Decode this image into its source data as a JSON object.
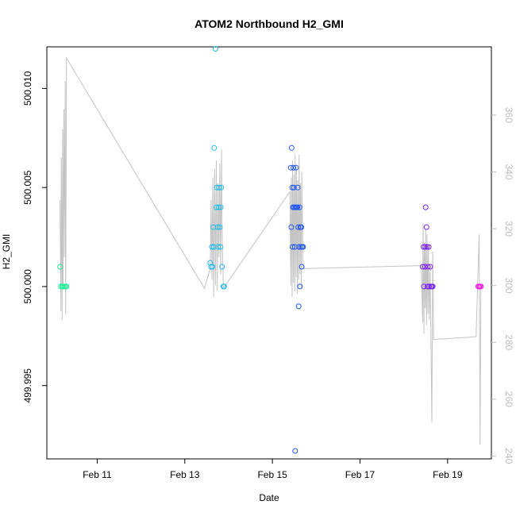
{
  "chart_data": {
    "type": "scatter",
    "title": "ATOM2 Northbound H2_GMI",
    "xlabel": "Date",
    "ylabel": "H2_GMI",
    "x_unit": "days (Feb, day of month)",
    "xlim": [
      9.85,
      20.0
    ],
    "ylim": [
      499.9913,
      500.0121
    ],
    "x_ticks": [
      {
        "value": 11,
        "label": "Feb 11"
      },
      {
        "value": 13,
        "label": "Feb 13"
      },
      {
        "value": 15,
        "label": "Feb 15"
      },
      {
        "value": 17,
        "label": "Feb 17"
      },
      {
        "value": 19,
        "label": "Feb 19"
      }
    ],
    "y_ticks": [
      {
        "value": 499.995,
        "label": "499.995"
      },
      {
        "value": 500.0,
        "label": "500.000"
      },
      {
        "value": 500.005,
        "label": "500.005"
      },
      {
        "value": 500.01,
        "label": "500.010"
      }
    ],
    "y2_ticks": [
      {
        "value": 240,
        "label": "240"
      },
      {
        "value": 260,
        "label": "260"
      },
      {
        "value": 280,
        "label": "280"
      },
      {
        "value": 300,
        "label": "300"
      },
      {
        "value": 320,
        "label": "320"
      },
      {
        "value": 340,
        "label": "340"
      },
      {
        "value": 360,
        "label": "360"
      }
    ],
    "y2lim": [
      239,
      384
    ],
    "grid": false,
    "colors": {
      "secondary_line": "#c4c4c4",
      "right_axis": "#bdbdbd",
      "frame": "#000000"
    },
    "points": [
      {
        "x": 10.15,
        "y": 500.001,
        "color": "#22ee99"
      },
      {
        "x": 10.17,
        "y": 500.0,
        "color": "#22ee99"
      },
      {
        "x": 10.2,
        "y": 500.0,
        "color": "#22ee99"
      },
      {
        "x": 10.22,
        "y": 500.0,
        "color": "#22ee99"
      },
      {
        "x": 10.25,
        "y": 500.0,
        "color": "#22ee99"
      },
      {
        "x": 10.28,
        "y": 500.0,
        "color": "#22ee99"
      },
      {
        "x": 10.3,
        "y": 500.0,
        "color": "#22ee99"
      },
      {
        "x": 13.58,
        "y": 500.0012,
        "color": "#22bbe6"
      },
      {
        "x": 13.6,
        "y": 500.001,
        "color": "#22bbe6"
      },
      {
        "x": 13.62,
        "y": 500.002,
        "color": "#22bbe6"
      },
      {
        "x": 13.63,
        "y": 500.001,
        "color": "#22bbe6"
      },
      {
        "x": 13.65,
        "y": 500.003,
        "color": "#22bbe6"
      },
      {
        "x": 13.66,
        "y": 500.002,
        "color": "#22bbe6"
      },
      {
        "x": 13.67,
        "y": 500.007,
        "color": "#22bbe6"
      },
      {
        "x": 13.7,
        "y": 500.012,
        "color": "#22bbe6"
      },
      {
        "x": 13.72,
        "y": 500.004,
        "color": "#22bbe6"
      },
      {
        "x": 13.73,
        "y": 500.005,
        "color": "#22bbe6"
      },
      {
        "x": 13.75,
        "y": 500.003,
        "color": "#22bbe6"
      },
      {
        "x": 13.76,
        "y": 500.002,
        "color": "#22bbe6"
      },
      {
        "x": 13.77,
        "y": 500.004,
        "color": "#22bbe6"
      },
      {
        "x": 13.78,
        "y": 500.005,
        "color": "#22bbe6"
      },
      {
        "x": 13.8,
        "y": 500.003,
        "color": "#22bbe6"
      },
      {
        "x": 13.81,
        "y": 500.002,
        "color": "#22bbe6"
      },
      {
        "x": 13.82,
        "y": 500.004,
        "color": "#22bbe6"
      },
      {
        "x": 13.83,
        "y": 500.005,
        "color": "#22bbe6"
      },
      {
        "x": 13.85,
        "y": 500.001,
        "color": "#22bbe6"
      },
      {
        "x": 13.88,
        "y": 500.0,
        "color": "#22bbe6"
      },
      {
        "x": 13.9,
        "y": 500.0,
        "color": "#22bbe6"
      },
      {
        "x": 15.42,
        "y": 500.006,
        "color": "#2255ee"
      },
      {
        "x": 15.43,
        "y": 500.003,
        "color": "#2255ee"
      },
      {
        "x": 15.44,
        "y": 500.007,
        "color": "#2255ee"
      },
      {
        "x": 15.45,
        "y": 500.005,
        "color": "#2255ee"
      },
      {
        "x": 15.46,
        "y": 500.002,
        "color": "#2255ee"
      },
      {
        "x": 15.47,
        "y": 500.004,
        "color": "#2255ee"
      },
      {
        "x": 15.48,
        "y": 500.006,
        "color": "#2255ee"
      },
      {
        "x": 15.49,
        "y": 500.005,
        "color": "#2255ee"
      },
      {
        "x": 15.5,
        "y": 500.004,
        "color": "#2255ee"
      },
      {
        "x": 15.51,
        "y": 500.002,
        "color": "#2255ee"
      },
      {
        "x": 15.52,
        "y": 499.9917,
        "color": "#2255ee"
      },
      {
        "x": 15.53,
        "y": 500.004,
        "color": "#2255ee"
      },
      {
        "x": 15.54,
        "y": 500.006,
        "color": "#2255ee"
      },
      {
        "x": 15.55,
        "y": 500.004,
        "color": "#2255ee"
      },
      {
        "x": 15.57,
        "y": 500.004,
        "color": "#2255ee"
      },
      {
        "x": 15.58,
        "y": 500.005,
        "color": "#2255ee"
      },
      {
        "x": 15.59,
        "y": 500.003,
        "color": "#2255ee"
      },
      {
        "x": 15.6,
        "y": 499.999,
        "color": "#2255ee"
      },
      {
        "x": 15.61,
        "y": 500.002,
        "color": "#2255ee"
      },
      {
        "x": 15.62,
        "y": 500.004,
        "color": "#2255ee"
      },
      {
        "x": 15.63,
        "y": 500.0,
        "color": "#2255ee"
      },
      {
        "x": 15.64,
        "y": 500.003,
        "color": "#2255ee"
      },
      {
        "x": 15.65,
        "y": 500.002,
        "color": "#2255ee"
      },
      {
        "x": 15.66,
        "y": 500.003,
        "color": "#2255ee"
      },
      {
        "x": 15.67,
        "y": 500.001,
        "color": "#2255ee"
      },
      {
        "x": 15.68,
        "y": 500.002,
        "color": "#2255ee"
      },
      {
        "x": 15.7,
        "y": 500.002,
        "color": "#2255ee"
      },
      {
        "x": 18.43,
        "y": 500.001,
        "color": "#7a22ee"
      },
      {
        "x": 18.45,
        "y": 500.002,
        "color": "#7a22ee"
      },
      {
        "x": 18.46,
        "y": 500.0,
        "color": "#7a22ee"
      },
      {
        "x": 18.48,
        "y": 500.001,
        "color": "#7a22ee"
      },
      {
        "x": 18.49,
        "y": 500.002,
        "color": "#7a22ee"
      },
      {
        "x": 18.5,
        "y": 500.004,
        "color": "#7a22ee"
      },
      {
        "x": 18.52,
        "y": 500.003,
        "color": "#7a22ee"
      },
      {
        "x": 18.53,
        "y": 500.002,
        "color": "#7a22ee"
      },
      {
        "x": 18.54,
        "y": 500.0,
        "color": "#7a22ee"
      },
      {
        "x": 18.55,
        "y": 500.001,
        "color": "#7a22ee"
      },
      {
        "x": 18.57,
        "y": 500.002,
        "color": "#7a22ee"
      },
      {
        "x": 18.58,
        "y": 500.0,
        "color": "#7a22ee"
      },
      {
        "x": 18.6,
        "y": 500.001,
        "color": "#7a22ee"
      },
      {
        "x": 18.62,
        "y": 500.0,
        "color": "#7a22ee"
      },
      {
        "x": 18.64,
        "y": 500.0,
        "color": "#7a22ee"
      },
      {
        "x": 18.66,
        "y": 500.0,
        "color": "#7a22ee"
      },
      {
        "x": 19.7,
        "y": 500.0,
        "color": "#ee22dd"
      },
      {
        "x": 19.72,
        "y": 500.0,
        "color": "#ee22dd"
      },
      {
        "x": 19.74,
        "y": 500.0,
        "color": "#ee22dd"
      },
      {
        "x": 19.76,
        "y": 500.0,
        "color": "#ee22dd"
      }
    ],
    "secondary_series": {
      "axis": "right",
      "x": [
        10.15,
        10.17,
        10.18,
        10.2,
        10.21,
        10.22,
        10.24,
        10.25,
        10.27,
        10.28,
        10.3,
        13.45,
        13.58,
        13.6,
        13.62,
        13.64,
        13.66,
        13.68,
        13.7,
        13.72,
        13.74,
        13.76,
        13.78,
        13.8,
        13.82,
        13.84,
        13.85,
        13.88,
        15.4,
        15.42,
        15.43,
        15.45,
        15.46,
        15.48,
        15.49,
        15.51,
        15.52,
        15.54,
        15.55,
        15.57,
        15.58,
        15.6,
        15.61,
        15.63,
        15.64,
        15.66,
        15.67,
        15.7,
        15.75,
        18.4,
        18.43,
        18.44,
        18.46,
        18.47,
        18.49,
        18.5,
        18.52,
        18.53,
        18.55,
        18.56,
        18.58,
        18.6,
        18.62,
        18.64,
        18.66,
        18.68,
        19.65,
        19.72,
        19.74,
        19.76
      ],
      "y": [
        330,
        291,
        345,
        288,
        355,
        300,
        362,
        310,
        372,
        290,
        380,
        299,
        306,
        330,
        302,
        338,
        296,
        341,
        300,
        344,
        298,
        336,
        310,
        343,
        304,
        348,
        322,
        299,
        333,
        300,
        338,
        296,
        344,
        301,
        339,
        298,
        346,
        303,
        341,
        297,
        337,
        302,
        346,
        304,
        336,
        299,
        340,
        306,
        306,
        307,
        287,
        322,
        283,
        315,
        292,
        320,
        286,
        318,
        290,
        314,
        288,
        307,
        280,
        252,
        312,
        281,
        282,
        318,
        244,
        300
      ]
    }
  }
}
